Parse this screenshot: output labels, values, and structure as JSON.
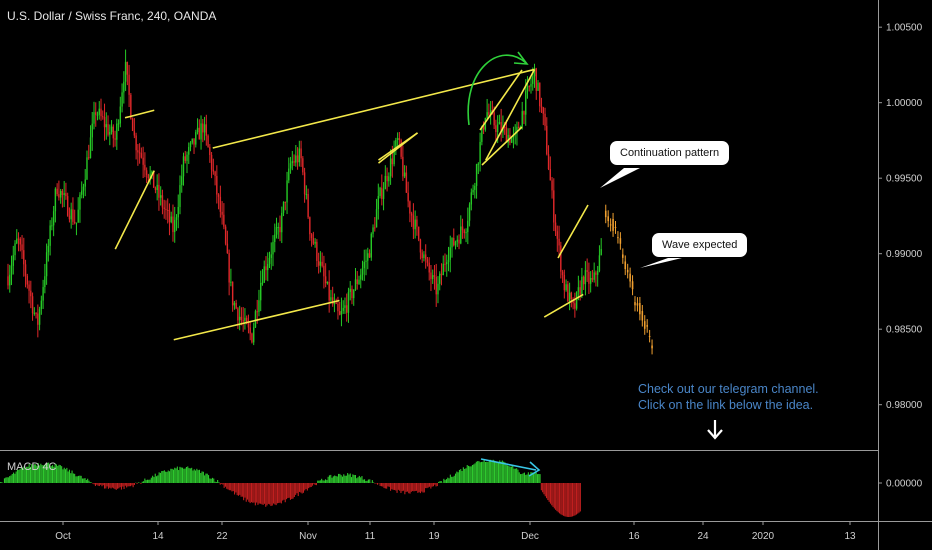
{
  "header": {
    "title": "U.S. Dollar / Swiss Franc, 240, OANDA"
  },
  "indicator": {
    "name": "MACD 4C",
    "tick_labels": [
      "0.00000"
    ]
  },
  "annotations": {
    "continuation": "Continuation pattern",
    "wave": "Wave expected",
    "note_line1": "Check out our telegram channel.",
    "note_line2": "Click on the link below the idea."
  },
  "colors": {
    "up": "#26c926",
    "down": "#e0282a",
    "projection": "#f0a030",
    "trendline": "#f3e84a",
    "arc": "#2fd13a",
    "divergence": "#39c6e6",
    "macd_pos": "#2ec82e",
    "macd_neg": "#c01f1f"
  },
  "icons": {
    "arrow": "down-arrow-icon"
  },
  "chart_data": {
    "type": "candlestick",
    "y_ticks": [
      "1.00500",
      "1.00000",
      "0.99500",
      "0.99000",
      "0.98500",
      "0.98000"
    ],
    "y_range": [
      0.977,
      1.0068
    ],
    "x_ticks": [
      "Oct",
      "14",
      "22",
      "Nov",
      "11",
      "19",
      "Dec",
      "16",
      "24",
      "2020",
      "13"
    ],
    "price_path": [
      [
        0,
        0.9885
      ],
      [
        1,
        0.991
      ],
      [
        3,
        0.9852
      ],
      [
        5,
        0.9945
      ],
      [
        7,
        0.992
      ],
      [
        9,
        0.9995
      ],
      [
        11,
        0.9975
      ],
      [
        12,
        1.0025
      ],
      [
        13,
        0.9975
      ],
      [
        15,
        0.9945
      ],
      [
        17,
        0.9915
      ],
      [
        18,
        0.996
      ],
      [
        20,
        0.9985
      ],
      [
        21,
        0.9955
      ],
      [
        22,
        0.992
      ],
      [
        23,
        0.987
      ],
      [
        24,
        0.9855
      ],
      [
        25,
        0.9845
      ],
      [
        26,
        0.9885
      ],
      [
        28,
        0.992
      ],
      [
        29,
        0.996
      ],
      [
        30,
        0.9965
      ],
      [
        31,
        0.9915
      ],
      [
        33,
        0.987
      ],
      [
        34,
        0.9857
      ],
      [
        35,
        0.987
      ],
      [
        37,
        0.99
      ],
      [
        38,
        0.9935
      ],
      [
        40,
        0.9975
      ],
      [
        41,
        0.9935
      ],
      [
        43,
        0.989
      ],
      [
        44,
        0.9875
      ],
      [
        45,
        0.99
      ],
      [
        47,
        0.992
      ],
      [
        48,
        0.9955
      ],
      [
        49,
        0.9995
      ],
      [
        50,
        0.9985
      ],
      [
        52,
        0.9975
      ],
      [
        53,
        1.0
      ],
      [
        54,
        1.002
      ],
      [
        55,
        0.9985
      ],
      [
        56,
        0.9925
      ],
      [
        57,
        0.988
      ],
      [
        58,
        0.9862
      ],
      [
        59,
        0.9885
      ],
      [
        60,
        0.988
      ],
      [
        61,
        0.9905
      ]
    ],
    "projection": [
      [
        61,
        0.9925
      ],
      [
        62,
        0.9915
      ],
      [
        63,
        0.9895
      ],
      [
        64,
        0.987
      ],
      [
        65,
        0.9855
      ],
      [
        66,
        0.9832
      ]
    ],
    "trendlines": [
      [
        [
          -3,
          0.9848
        ],
        [
          -1,
          0.9843
        ]
      ],
      [
        [
          11,
          0.9903
        ],
        [
          15,
          0.9955
        ]
      ],
      [
        [
          12,
          0.999
        ],
        [
          15,
          0.9995
        ]
      ],
      [
        [
          17,
          0.9843
        ],
        [
          34,
          0.9869
        ]
      ],
      [
        [
          21,
          0.997
        ],
        [
          54,
          1.0022
        ]
      ],
      [
        [
          38,
          0.9962
        ],
        [
          42,
          0.998
        ]
      ],
      [
        [
          38,
          0.996
        ],
        [
          42,
          0.998
        ]
      ],
      [
        [
          49,
          0.9962
        ],
        [
          54,
          1.0022
        ]
      ],
      [
        [
          55,
          0.9858
        ],
        [
          59,
          0.9873
        ]
      ]
    ]
  }
}
